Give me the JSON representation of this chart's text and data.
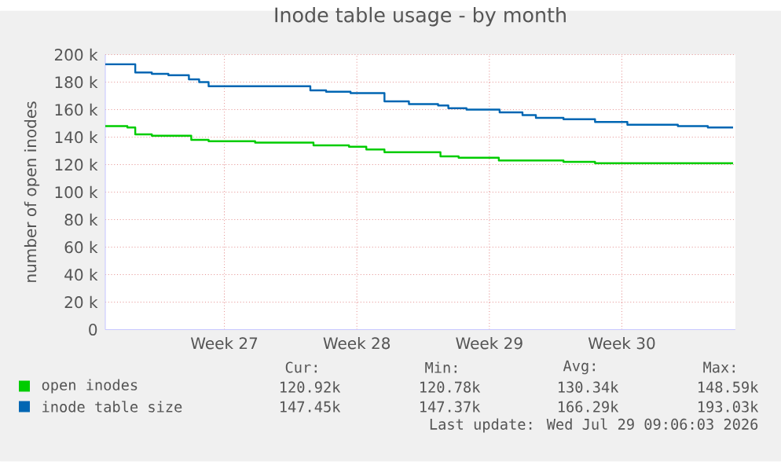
{
  "chart_data": {
    "type": "step",
    "title": "Inode table usage - by month",
    "ylabel": "number of open inodes",
    "xlim": [
      "2026-06-26T05:00",
      "2026-07-29T12:00"
    ],
    "ylim": [
      0,
      200
    ],
    "xticks": [
      {
        "value": "2026-07-02T12:00",
        "label": "Week 27"
      },
      {
        "value": "2026-07-09T12:00",
        "label": "Week 28"
      },
      {
        "value": "2026-07-16T12:00",
        "label": "Week 29"
      },
      {
        "value": "2026-07-23T12:00",
        "label": "Week 30"
      }
    ],
    "yticks": [
      0,
      {
        "value": 20,
        "label": "20 k"
      },
      {
        "value": 40,
        "label": "40 k"
      },
      {
        "value": 60,
        "label": "60 k"
      },
      {
        "value": 80,
        "label": "80 k"
      },
      {
        "value": 100,
        "label": "100 k"
      },
      {
        "value": 120,
        "label": "120 k"
      },
      {
        "value": 140,
        "label": "140 k"
      },
      {
        "value": 160,
        "label": "160 k"
      },
      {
        "value": 180,
        "label": "180 k"
      },
      {
        "value": 200,
        "label": "200 k"
      }
    ],
    "grid": true,
    "legend": "bottom",
    "series": [
      {
        "name": "open inodes",
        "color": "#00cc00",
        "x": [
          "2026-06-26T05:00",
          "2026-06-27T09:00",
          "2026-06-27T19:00",
          "2026-06-28T16:00",
          "2026-06-30T15:00",
          "2026-06-30T18:00",
          "2026-07-01T16:00",
          "2026-07-04T03:00",
          "2026-07-07T05:00",
          "2026-07-09T02:00",
          "2026-07-10T00:00",
          "2026-07-10T23:00",
          "2026-07-13T22:00",
          "2026-07-14T21:00",
          "2026-07-17T00:00",
          "2026-07-20T10:00",
          "2026-07-22T02:00",
          "2026-07-28T01:00",
          "2026-07-29T09:00"
        ],
        "values": [
          148,
          147,
          142,
          141,
          141,
          138,
          137,
          136,
          134,
          133,
          131,
          129,
          126,
          125,
          123,
          122,
          121,
          121,
          121
        ]
      },
      {
        "name": "inode table size",
        "color": "#0066b3",
        "x": [
          "2026-06-26T05:00",
          "2026-06-27T19:00",
          "2026-06-28T16:00",
          "2026-06-29T13:00",
          "2026-06-30T15:00",
          "2026-07-01T04:00",
          "2026-07-01T16:00",
          "2026-07-07T01:00",
          "2026-07-07T21:00",
          "2026-07-09T04:00",
          "2026-07-10T23:00",
          "2026-07-12T06:00",
          "2026-07-13T19:00",
          "2026-07-14T08:00",
          "2026-07-15T07:00",
          "2026-07-17T01:00",
          "2026-07-18T06:00",
          "2026-07-18T23:00",
          "2026-07-20T10:00",
          "2026-07-22T02:00",
          "2026-07-23T19:00",
          "2026-07-26T11:00",
          "2026-07-28T01:00",
          "2026-07-29T09:00"
        ],
        "values": [
          193,
          187,
          186,
          185,
          182,
          180,
          177,
          174,
          173,
          172,
          166,
          164,
          163,
          161,
          160,
          158,
          156,
          154,
          153,
          151,
          149,
          148,
          147,
          147
        ]
      }
    ],
    "annotations": [
      "Cur:",
      "Min:",
      "Avg:",
      "Max:",
      "120.92k",
      "120.78k",
      "130.34k",
      "148.59k",
      "147.45k",
      "147.37k",
      "166.29k",
      "193.03k",
      "Last update: Wed Jul 29 09:06:03 2026"
    ]
  }
}
